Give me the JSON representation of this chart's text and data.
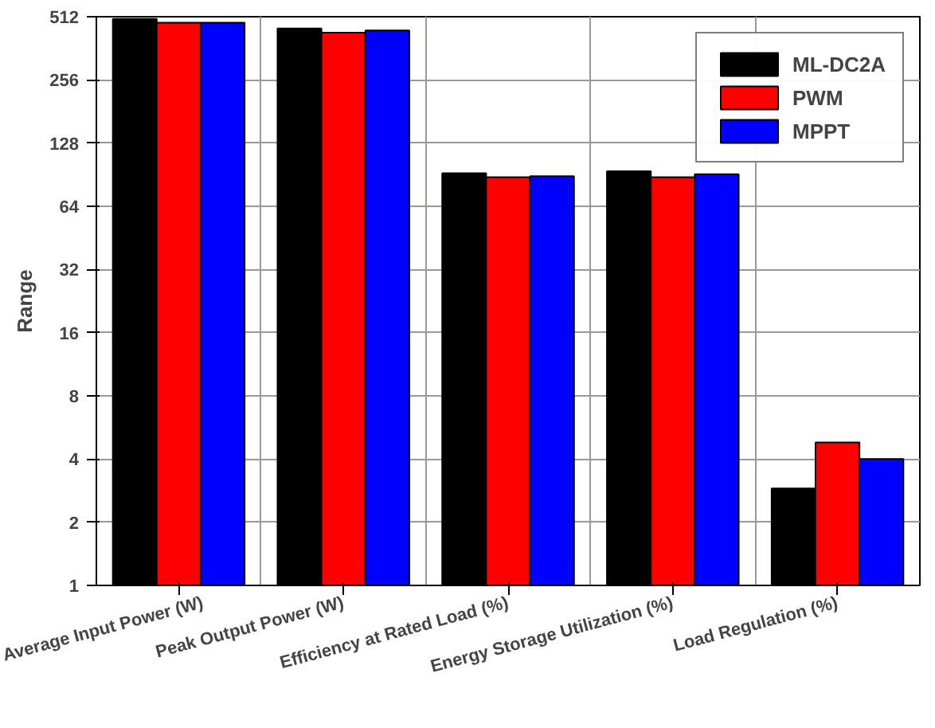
{
  "chart_data": {
    "type": "bar",
    "ylabel": "Range",
    "categories": [
      "Average Input Power (W)",
      "Peak Output Power (W)",
      "Efficiency at Rated Load (%)",
      "Energy Storage Utilization (%)",
      "Load Regulation (%)"
    ],
    "series": [
      {
        "name": "ML-DC2A",
        "color": "#000000",
        "values": [
          500,
          450,
          92,
          94,
          2.9
        ]
      },
      {
        "name": "PWM",
        "color": "#ff0000",
        "values": [
          480,
          430,
          88,
          88,
          4.8
        ]
      },
      {
        "name": "MPPT",
        "color": "#0000ff",
        "values": [
          480,
          440,
          89,
          91,
          4
        ]
      }
    ],
    "log": "y",
    "ylim": [
      1,
      512
    ],
    "yticks": [
      1,
      2,
      4,
      8,
      16,
      32,
      64,
      128,
      256,
      512
    ],
    "grid": true,
    "legend": "top right"
  }
}
